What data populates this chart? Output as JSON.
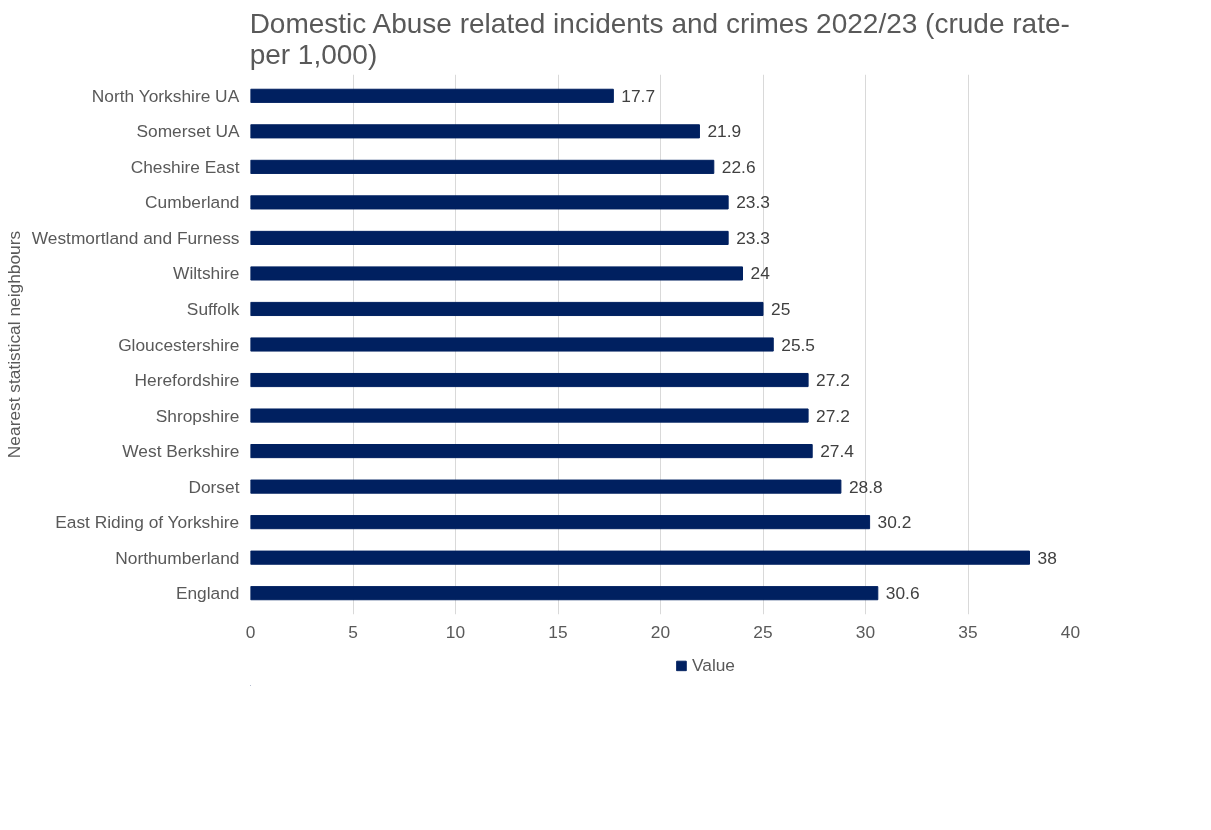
{
  "chart_data": {
    "type": "bar",
    "orientation": "horizontal",
    "title": "Domestic Abuse related incidents and crimes 2022/23 (crude rate-\nper 1,000)",
    "ylabel": "Nearest statistical neighbours",
    "categories": [
      "North Yorkshire UA",
      "Somerset UA",
      "Cheshire East",
      "Cumberland",
      "Westmortland and Furness",
      "Wiltshire",
      "Suffolk",
      "Gloucestershire",
      "Herefordshire",
      "Shropshire",
      "West Berkshire",
      "Dorset",
      "East Riding of Yorkshire",
      "Northumberland",
      "England"
    ],
    "series": [
      {
        "name": "Value",
        "color": "#002060",
        "values": [
          17.7,
          21.9,
          22.6,
          23.3,
          23.3,
          24,
          25,
          25.5,
          27.2,
          27.2,
          27.4,
          28.8,
          30.2,
          38,
          30.6
        ]
      }
    ],
    "xlim": [
      0,
      40
    ],
    "xticks": [
      0,
      5,
      10,
      15,
      20,
      25,
      30,
      35,
      40
    ],
    "grid": "x",
    "legend": "bottom",
    "data_labels": true
  }
}
